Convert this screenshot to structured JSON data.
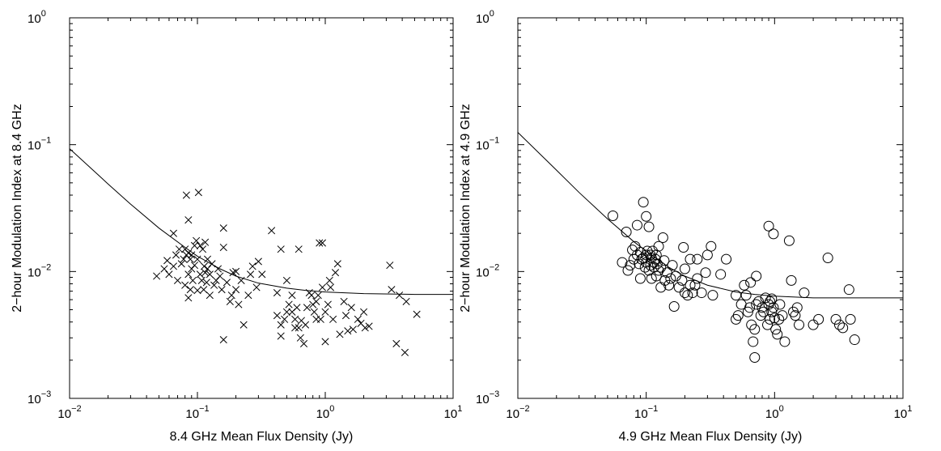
{
  "chart_data": [
    {
      "type": "scatter",
      "title": "",
      "xlabel": "8.4 GHz Mean Flux Density (Jy)",
      "ylabel": "2−hour Modulation Index at 8.4 GHz",
      "xscale": "log",
      "yscale": "log",
      "xlim": [
        0.01,
        10
      ],
      "ylim": [
        0.001,
        1
      ],
      "xticks": [
        {
          "base": "10",
          "exp": "−2"
        },
        {
          "base": "10",
          "exp": "−1"
        },
        {
          "base": "10",
          "exp": "0"
        },
        {
          "base": "10",
          "exp": "1"
        }
      ],
      "yticks": [
        {
          "base": "10",
          "exp": "−3"
        },
        {
          "base": "10",
          "exp": "−2"
        },
        {
          "base": "10",
          "exp": "−1"
        },
        {
          "base": "10",
          "exp": "0"
        }
      ],
      "marker": "x",
      "grid": false,
      "fit_curve": {
        "x": [
          0.01,
          0.02,
          0.03,
          0.05,
          0.08,
          0.1,
          0.15,
          0.2,
          0.3,
          0.5,
          0.7,
          1,
          2,
          5,
          10
        ],
        "y": [
          0.093,
          0.049,
          0.034,
          0.022,
          0.0155,
          0.0132,
          0.0105,
          0.0092,
          0.0081,
          0.0074,
          0.0071,
          0.0069,
          0.0067,
          0.0066,
          0.0066
        ]
      },
      "points": [
        [
          0.048,
          0.0092
        ],
        [
          0.055,
          0.0105
        ],
        [
          0.058,
          0.0122
        ],
        [
          0.06,
          0.0095
        ],
        [
          0.065,
          0.011
        ],
        [
          0.065,
          0.02
        ],
        [
          0.068,
          0.0135
        ],
        [
          0.07,
          0.0085
        ],
        [
          0.072,
          0.015
        ],
        [
          0.075,
          0.0115
        ],
        [
          0.078,
          0.0125
        ],
        [
          0.08,
          0.0078
        ],
        [
          0.08,
          0.015
        ],
        [
          0.082,
          0.0135
        ],
        [
          0.082,
          0.04
        ],
        [
          0.085,
          0.0062
        ],
        [
          0.085,
          0.0095
        ],
        [
          0.085,
          0.014
        ],
        [
          0.085,
          0.0255
        ],
        [
          0.088,
          0.0072
        ],
        [
          0.088,
          0.0125
        ],
        [
          0.09,
          0.0105
        ],
        [
          0.09,
          0.0135
        ],
        [
          0.092,
          0.0085
        ],
        [
          0.095,
          0.0112
        ],
        [
          0.095,
          0.016
        ],
        [
          0.098,
          0.0175
        ],
        [
          0.1,
          0.0071
        ],
        [
          0.1,
          0.0125
        ],
        [
          0.102,
          0.042
        ],
        [
          0.105,
          0.0095
        ],
        [
          0.105,
          0.016
        ],
        [
          0.108,
          0.0085
        ],
        [
          0.11,
          0.015
        ],
        [
          0.112,
          0.0072
        ],
        [
          0.113,
          0.011
        ],
        [
          0.115,
          0.0098
        ],
        [
          0.115,
          0.017
        ],
        [
          0.118,
          0.0082
        ],
        [
          0.12,
          0.0105
        ],
        [
          0.12,
          0.0125
        ],
        [
          0.125,
          0.0065
        ],
        [
          0.125,
          0.0095
        ],
        [
          0.13,
          0.0115
        ],
        [
          0.135,
          0.0078
        ],
        [
          0.14,
          0.0085
        ],
        [
          0.145,
          0.0105
        ],
        [
          0.15,
          0.0092
        ],
        [
          0.155,
          0.0072
        ],
        [
          0.16,
          0.0029
        ],
        [
          0.16,
          0.0155
        ],
        [
          0.16,
          0.022
        ],
        [
          0.17,
          0.0082
        ],
        [
          0.18,
          0.0058
        ],
        [
          0.185,
          0.0065
        ],
        [
          0.19,
          0.0098
        ],
        [
          0.2,
          0.0072
        ],
        [
          0.2,
          0.01
        ],
        [
          0.21,
          0.0055
        ],
        [
          0.22,
          0.0085
        ],
        [
          0.23,
          0.0038
        ],
        [
          0.25,
          0.0065
        ],
        [
          0.26,
          0.0095
        ],
        [
          0.27,
          0.011
        ],
        [
          0.29,
          0.0075
        ],
        [
          0.3,
          0.012
        ],
        [
          0.32,
          0.0095
        ],
        [
          0.38,
          0.021
        ],
        [
          0.42,
          0.0045
        ],
        [
          0.42,
          0.0068
        ],
        [
          0.45,
          0.0031
        ],
        [
          0.45,
          0.0038
        ],
        [
          0.45,
          0.015
        ],
        [
          0.48,
          0.0042
        ],
        [
          0.5,
          0.0085
        ],
        [
          0.5,
          0.0048
        ],
        [
          0.52,
          0.0055
        ],
        [
          0.55,
          0.0048
        ],
        [
          0.55,
          0.0065
        ],
        [
          0.58,
          0.0036
        ],
        [
          0.58,
          0.0042
        ],
        [
          0.6,
          0.0052
        ],
        [
          0.62,
          0.0036
        ],
        [
          0.62,
          0.015
        ],
        [
          0.64,
          0.003
        ],
        [
          0.65,
          0.0041
        ],
        [
          0.68,
          0.0027
        ],
        [
          0.7,
          0.0038
        ],
        [
          0.72,
          0.0052
        ],
        [
          0.75,
          0.0068
        ],
        [
          0.78,
          0.0065
        ],
        [
          0.8,
          0.0055
        ],
        [
          0.82,
          0.0048
        ],
        [
          0.85,
          0.0058
        ],
        [
          0.85,
          0.0042
        ],
        [
          0.88,
          0.0065
        ],
        [
          0.9,
          0.0168
        ],
        [
          0.92,
          0.0042
        ],
        [
          0.95,
          0.0168
        ],
        [
          0.95,
          0.0075
        ],
        [
          1.0,
          0.0028
        ],
        [
          1.0,
          0.0048
        ],
        [
          1.05,
          0.0055
        ],
        [
          1.08,
          0.0085
        ],
        [
          1.1,
          0.0075
        ],
        [
          1.15,
          0.0042
        ],
        [
          1.2,
          0.0098
        ],
        [
          1.25,
          0.0115
        ],
        [
          1.3,
          0.0032
        ],
        [
          1.4,
          0.0058
        ],
        [
          1.45,
          0.0045
        ],
        [
          1.5,
          0.0034
        ],
        [
          1.6,
          0.0052
        ],
        [
          1.65,
          0.0035
        ],
        [
          1.8,
          0.0042
        ],
        [
          1.9,
          0.0039
        ],
        [
          2.0,
          0.0048
        ],
        [
          2.05,
          0.0036
        ],
        [
          2.2,
          0.0037
        ],
        [
          3.2,
          0.0112
        ],
        [
          3.3,
          0.0072
        ],
        [
          3.6,
          0.0027
        ],
        [
          3.8,
          0.0065
        ],
        [
          4.2,
          0.0023
        ],
        [
          4.3,
          0.0058
        ],
        [
          5.2,
          0.0046
        ]
      ]
    },
    {
      "type": "scatter",
      "title": "",
      "xlabel": "4.9 GHz Mean Flux Density (Jy)",
      "ylabel": "2−hour Modulation Index at 4.9 GHz",
      "xscale": "log",
      "yscale": "log",
      "xlim": [
        0.01,
        10
      ],
      "ylim": [
        0.001,
        1
      ],
      "xticks": [
        {
          "base": "10",
          "exp": "−2"
        },
        {
          "base": "10",
          "exp": "−1"
        },
        {
          "base": "10",
          "exp": "0"
        },
        {
          "base": "10",
          "exp": "1"
        }
      ],
      "yticks": [
        {
          "base": "10",
          "exp": "−3"
        },
        {
          "base": "10",
          "exp": "−2"
        },
        {
          "base": "10",
          "exp": "−1"
        },
        {
          "base": "10",
          "exp": "0"
        }
      ],
      "marker": "circle",
      "grid": false,
      "fit_curve": {
        "x": [
          0.01,
          0.02,
          0.03,
          0.05,
          0.08,
          0.1,
          0.15,
          0.2,
          0.3,
          0.5,
          0.7,
          1,
          2,
          5,
          10
        ],
        "y": [
          0.125,
          0.063,
          0.042,
          0.026,
          0.0172,
          0.0145,
          0.0108,
          0.0092,
          0.0078,
          0.0069,
          0.0066,
          0.0064,
          0.0062,
          0.0062,
          0.0062
        ]
      },
      "points": [
        [
          0.055,
          0.0275
        ],
        [
          0.065,
          0.0118
        ],
        [
          0.07,
          0.0205
        ],
        [
          0.072,
          0.0102
        ],
        [
          0.075,
          0.0112
        ],
        [
          0.078,
          0.0148
        ],
        [
          0.08,
          0.0125
        ],
        [
          0.082,
          0.0158
        ],
        [
          0.085,
          0.0135
        ],
        [
          0.085,
          0.0232
        ],
        [
          0.088,
          0.0115
        ],
        [
          0.09,
          0.0088
        ],
        [
          0.09,
          0.0142
        ],
        [
          0.092,
          0.0125
        ],
        [
          0.095,
          0.0128
        ],
        [
          0.095,
          0.0352
        ],
        [
          0.098,
          0.0108
        ],
        [
          0.1,
          0.0118
        ],
        [
          0.1,
          0.0135
        ],
        [
          0.1,
          0.0272
        ],
        [
          0.102,
          0.0145
        ],
        [
          0.105,
          0.0102
        ],
        [
          0.105,
          0.0225
        ],
        [
          0.108,
          0.0112
        ],
        [
          0.108,
          0.0135
        ],
        [
          0.11,
          0.0088
        ],
        [
          0.11,
          0.0128
        ],
        [
          0.112,
          0.0145
        ],
        [
          0.115,
          0.0118
        ],
        [
          0.115,
          0.0108
        ],
        [
          0.118,
          0.0125
        ],
        [
          0.12,
          0.0135
        ],
        [
          0.12,
          0.0092
        ],
        [
          0.122,
          0.0115
        ],
        [
          0.125,
          0.0102
        ],
        [
          0.125,
          0.0158
        ],
        [
          0.13,
          0.0108
        ],
        [
          0.13,
          0.0075
        ],
        [
          0.135,
          0.0185
        ],
        [
          0.138,
          0.0122
        ],
        [
          0.14,
          0.0085
        ],
        [
          0.145,
          0.0098
        ],
        [
          0.15,
          0.0078
        ],
        [
          0.155,
          0.0088
        ],
        [
          0.16,
          0.0112
        ],
        [
          0.165,
          0.0053
        ],
        [
          0.17,
          0.0092
        ],
        [
          0.18,
          0.0075
        ],
        [
          0.19,
          0.0085
        ],
        [
          0.195,
          0.0155
        ],
        [
          0.2,
          0.0068
        ],
        [
          0.2,
          0.0105
        ],
        [
          0.21,
          0.0065
        ],
        [
          0.22,
          0.0078
        ],
        [
          0.22,
          0.0125
        ],
        [
          0.23,
          0.0068
        ],
        [
          0.24,
          0.0078
        ],
        [
          0.25,
          0.0088
        ],
        [
          0.25,
          0.0125
        ],
        [
          0.27,
          0.0068
        ],
        [
          0.29,
          0.0098
        ],
        [
          0.3,
          0.0135
        ],
        [
          0.32,
          0.0158
        ],
        [
          0.33,
          0.0065
        ],
        [
          0.38,
          0.0095
        ],
        [
          0.42,
          0.0125
        ],
        [
          0.5,
          0.0065
        ],
        [
          0.5,
          0.0042
        ],
        [
          0.52,
          0.0045
        ],
        [
          0.55,
          0.0055
        ],
        [
          0.58,
          0.0078
        ],
        [
          0.6,
          0.0065
        ],
        [
          0.62,
          0.0048
        ],
        [
          0.64,
          0.0052
        ],
        [
          0.65,
          0.0082
        ],
        [
          0.66,
          0.0038
        ],
        [
          0.68,
          0.0028
        ],
        [
          0.7,
          0.0035
        ],
        [
          0.7,
          0.0021
        ],
        [
          0.72,
          0.0055
        ],
        [
          0.72,
          0.0092
        ],
        [
          0.75,
          0.0058
        ],
        [
          0.78,
          0.0045
        ],
        [
          0.8,
          0.0052
        ],
        [
          0.82,
          0.0048
        ],
        [
          0.85,
          0.0062
        ],
        [
          0.88,
          0.0038
        ],
        [
          0.9,
          0.0228
        ],
        [
          0.9,
          0.0055
        ],
        [
          0.92,
          0.0042
        ],
        [
          0.92,
          0.0058
        ],
        [
          0.95,
          0.0061
        ],
        [
          0.95,
          0.0048
        ],
        [
          0.98,
          0.0052
        ],
        [
          0.98,
          0.0198
        ],
        [
          1.0,
          0.0043
        ],
        [
          1.02,
          0.0035
        ],
        [
          1.05,
          0.0032
        ],
        [
          1.08,
          0.0042
        ],
        [
          1.1,
          0.0055
        ],
        [
          1.15,
          0.0045
        ],
        [
          1.2,
          0.0028
        ],
        [
          1.3,
          0.0175
        ],
        [
          1.35,
          0.0085
        ],
        [
          1.4,
          0.0048
        ],
        [
          1.45,
          0.0045
        ],
        [
          1.5,
          0.0052
        ],
        [
          1.55,
          0.0038
        ],
        [
          1.7,
          0.0068
        ],
        [
          2.0,
          0.0038
        ],
        [
          2.2,
          0.0042
        ],
        [
          2.6,
          0.0128
        ],
        [
          3.0,
          0.0042
        ],
        [
          3.2,
          0.0038
        ],
        [
          3.4,
          0.0036
        ],
        [
          3.8,
          0.0072
        ],
        [
          3.9,
          0.0042
        ],
        [
          4.2,
          0.0029
        ]
      ]
    }
  ]
}
